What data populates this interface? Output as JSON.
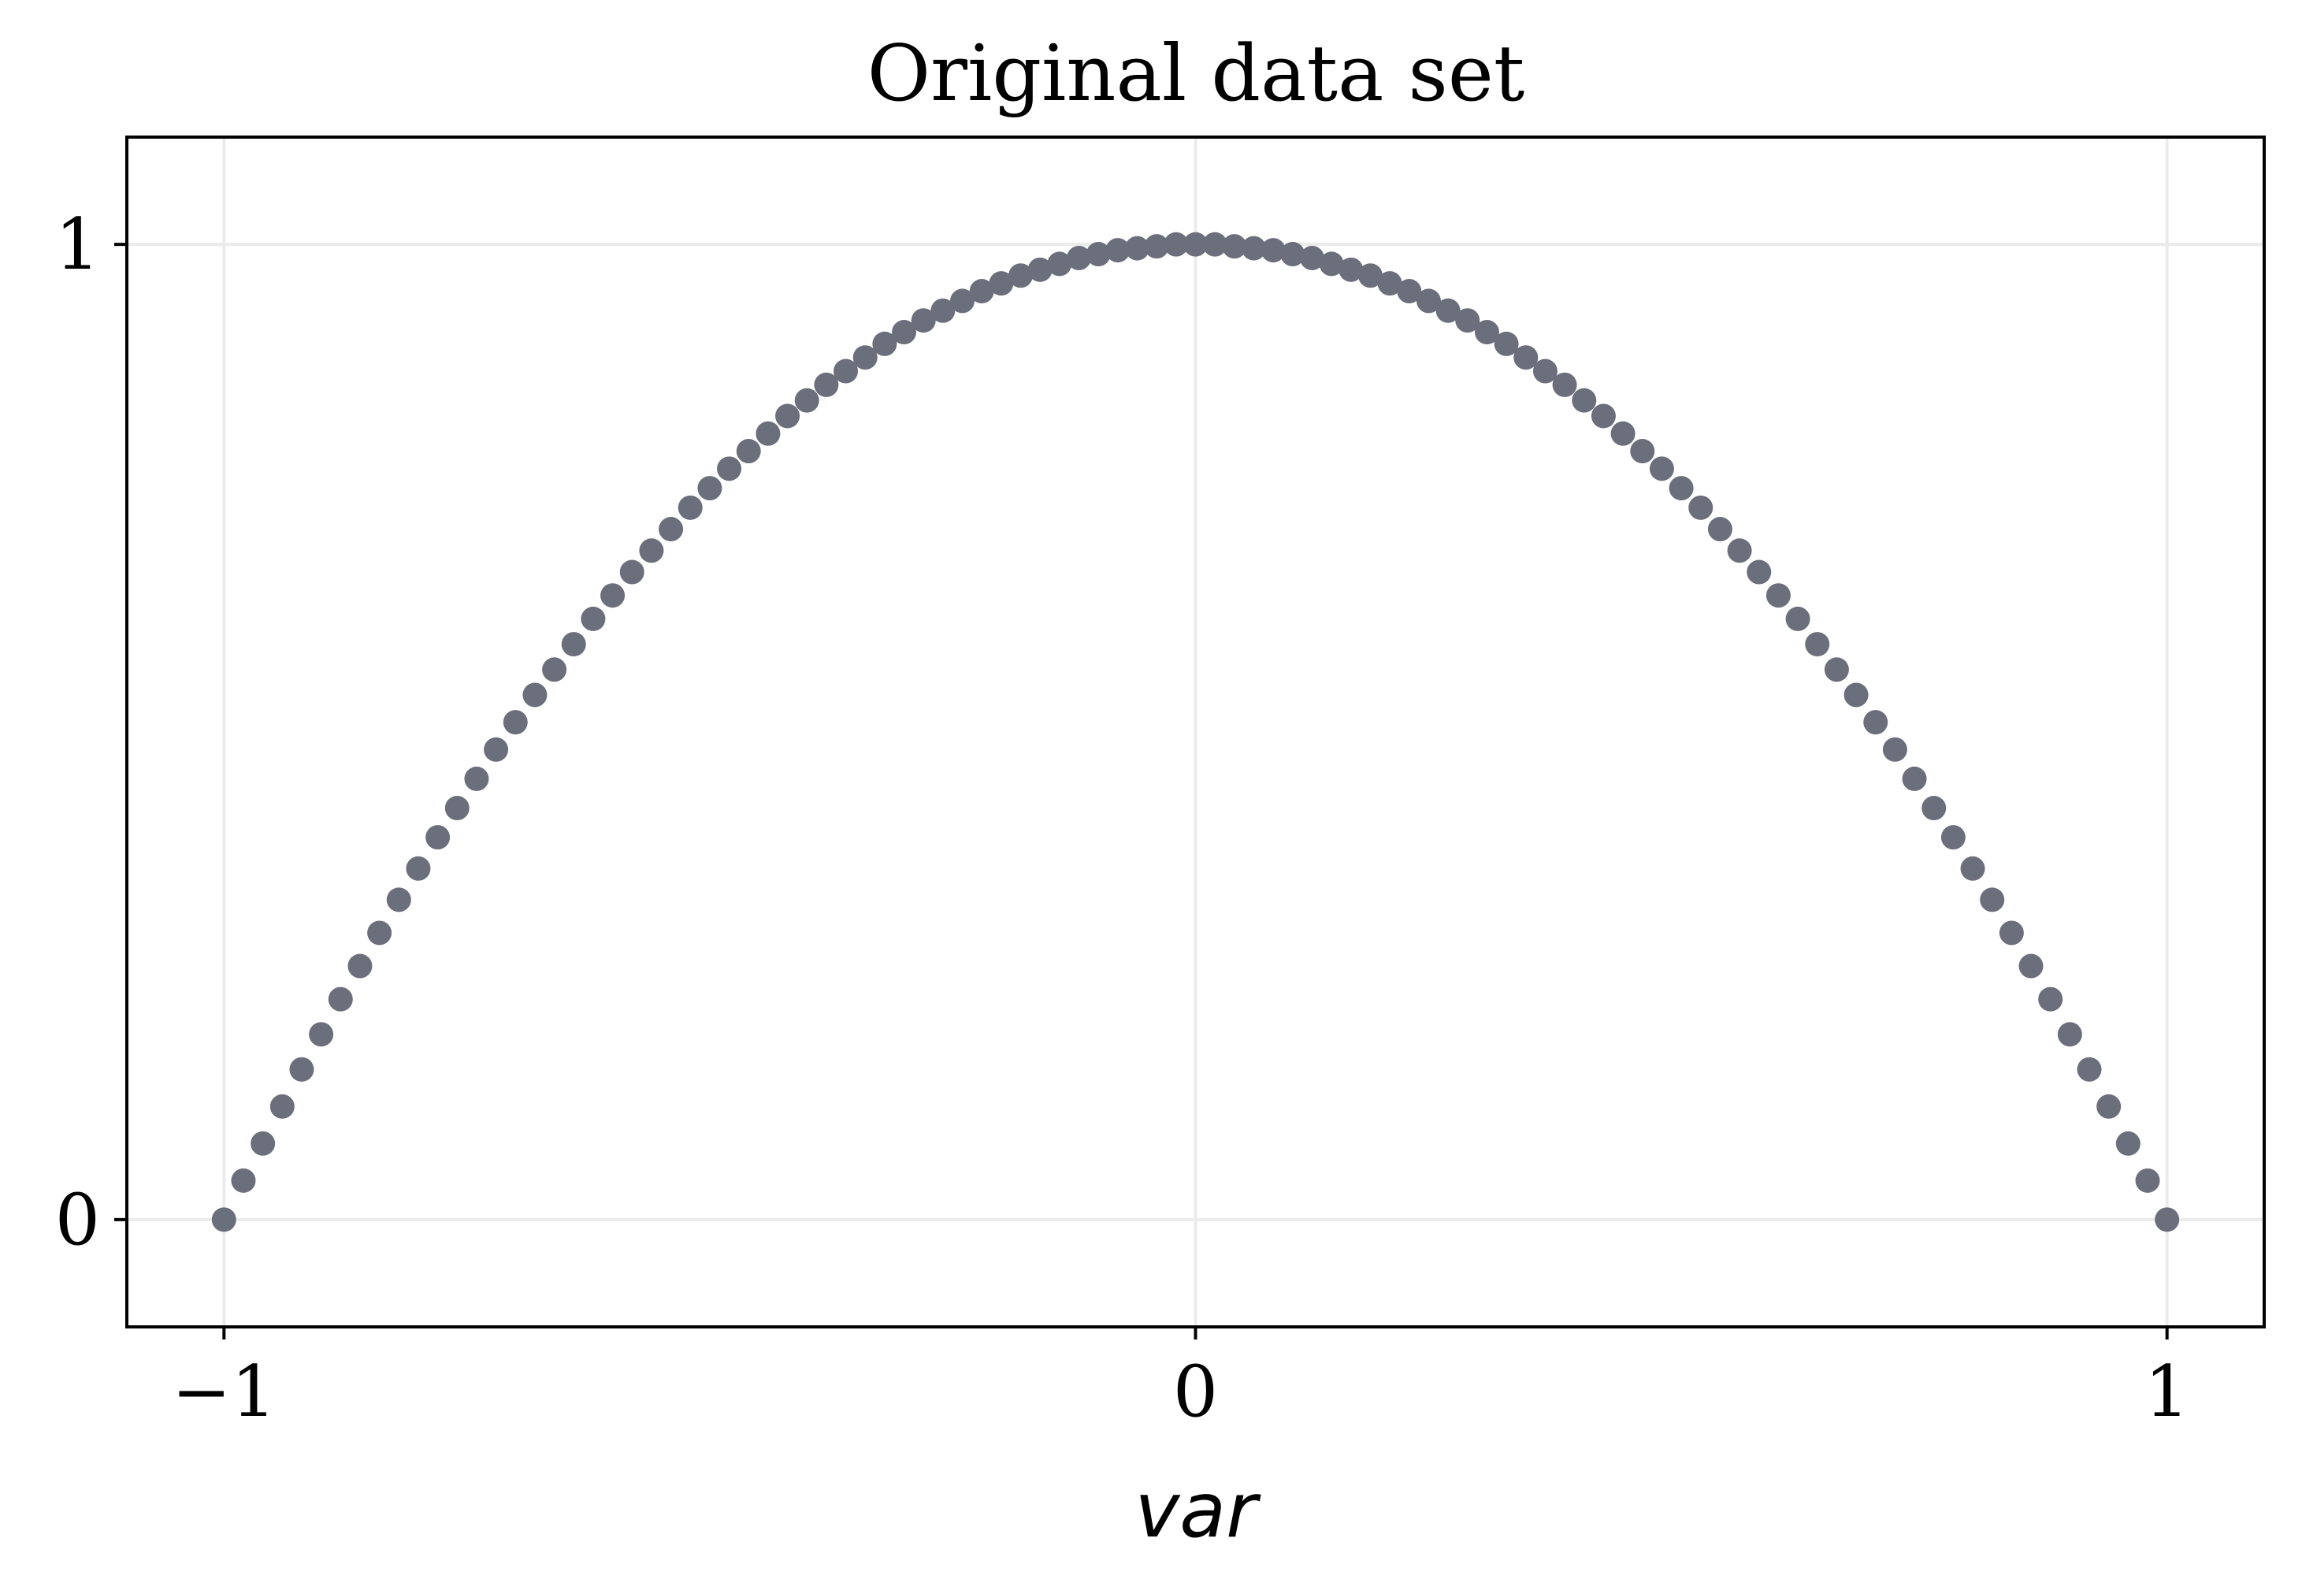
{
  "chart_data": {
    "type": "scatter",
    "title": "Original data set",
    "xlabel": "var",
    "ylabel": "",
    "xlim": [
      -1.1,
      1.1
    ],
    "ylim": [
      -0.11,
      1.11
    ],
    "xticks": [
      -1,
      0,
      1
    ],
    "xtick_labels": [
      "−1",
      "0",
      "1"
    ],
    "yticks": [
      0,
      1
    ],
    "ytick_labels": [
      "0",
      "1"
    ],
    "grid": true,
    "legend": "none",
    "marker_color": "#6b6f7b",
    "series": [
      {
        "x": [
          -1.0,
          -0.98,
          -0.96,
          -0.94,
          -0.92,
          -0.9,
          -0.88,
          -0.86,
          -0.84,
          -0.82,
          -0.8,
          -0.78,
          -0.76,
          -0.74,
          -0.72,
          -0.7,
          -0.68,
          -0.66,
          -0.64,
          -0.62,
          -0.6,
          -0.58,
          -0.56,
          -0.54,
          -0.52,
          -0.5,
          -0.48,
          -0.46,
          -0.44,
          -0.42,
          -0.4,
          -0.38,
          -0.36,
          -0.34,
          -0.32,
          -0.3,
          -0.28,
          -0.26,
          -0.24,
          -0.22,
          -0.2,
          -0.18,
          -0.16,
          -0.14,
          -0.12,
          -0.1,
          -0.08,
          -0.06,
          -0.04,
          -0.02,
          0.0,
          0.02,
          0.04,
          0.06,
          0.08,
          0.1,
          0.12,
          0.14,
          0.16,
          0.18,
          0.2,
          0.22,
          0.24,
          0.26,
          0.28,
          0.3,
          0.32,
          0.34,
          0.36,
          0.38,
          0.4,
          0.42,
          0.44,
          0.46,
          0.48,
          0.5,
          0.52,
          0.54,
          0.56,
          0.58,
          0.6,
          0.62,
          0.64,
          0.66,
          0.68,
          0.7,
          0.72,
          0.74,
          0.76,
          0.78,
          0.8,
          0.82,
          0.84,
          0.86,
          0.88,
          0.9,
          0.92,
          0.94,
          0.96,
          0.98,
          1.0
        ],
        "y": [
          0.0,
          0.04,
          0.078,
          0.116,
          0.154,
          0.19,
          0.226,
          0.26,
          0.294,
          0.328,
          0.36,
          0.392,
          0.422,
          0.452,
          0.482,
          0.51,
          0.538,
          0.564,
          0.59,
          0.616,
          0.64,
          0.664,
          0.686,
          0.708,
          0.73,
          0.75,
          0.77,
          0.788,
          0.806,
          0.824,
          0.84,
          0.856,
          0.87,
          0.884,
          0.898,
          0.91,
          0.922,
          0.932,
          0.942,
          0.952,
          0.96,
          0.968,
          0.974,
          0.98,
          0.986,
          0.99,
          0.994,
          0.996,
          0.998,
          1.0,
          1.0,
          1.0,
          0.998,
          0.996,
          0.994,
          0.99,
          0.986,
          0.98,
          0.974,
          0.968,
          0.96,
          0.952,
          0.942,
          0.932,
          0.922,
          0.91,
          0.898,
          0.884,
          0.87,
          0.856,
          0.84,
          0.824,
          0.806,
          0.788,
          0.77,
          0.75,
          0.73,
          0.708,
          0.686,
          0.664,
          0.64,
          0.616,
          0.59,
          0.564,
          0.538,
          0.51,
          0.482,
          0.452,
          0.422,
          0.392,
          0.36,
          0.328,
          0.294,
          0.26,
          0.226,
          0.19,
          0.154,
          0.116,
          0.078,
          0.04,
          0.0
        ]
      }
    ]
  }
}
